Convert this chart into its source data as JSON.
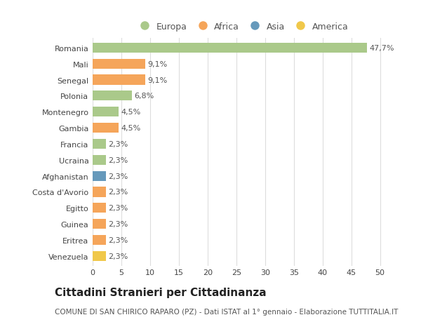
{
  "countries": [
    "Venezuela",
    "Eritrea",
    "Guinea",
    "Egitto",
    "Costa d'Avorio",
    "Afghanistan",
    "Ucraina",
    "Francia",
    "Gambia",
    "Montenegro",
    "Polonia",
    "Senegal",
    "Mali",
    "Romania"
  ],
  "values": [
    2.3,
    2.3,
    2.3,
    2.3,
    2.3,
    2.3,
    2.3,
    2.3,
    4.5,
    4.5,
    6.8,
    9.1,
    9.1,
    47.7
  ],
  "labels": [
    "2,3%",
    "2,3%",
    "2,3%",
    "2,3%",
    "2,3%",
    "2,3%",
    "2,3%",
    "2,3%",
    "4,5%",
    "4,5%",
    "6,8%",
    "9,1%",
    "9,1%",
    "47,7%"
  ],
  "colors": [
    "#f0c84a",
    "#f5a55a",
    "#f5a55a",
    "#f5a55a",
    "#f5a55a",
    "#6699bb",
    "#aac98a",
    "#aac98a",
    "#f5a55a",
    "#aac98a",
    "#aac98a",
    "#f5a55a",
    "#f5a55a",
    "#aac98a"
  ],
  "legend_labels": [
    "Europa",
    "Africa",
    "Asia",
    "America"
  ],
  "legend_colors": [
    "#aac98a",
    "#f5a55a",
    "#6699bb",
    "#f0c84a"
  ],
  "title": "Cittadini Stranieri per Cittadinanza",
  "subtitle": "COMUNE DI SAN CHIRICO RAPARO (PZ) - Dati ISTAT al 1° gennaio - Elaborazione TUTTITALIA.IT",
  "xlim": [
    0,
    52
  ],
  "xticks": [
    0,
    5,
    10,
    15,
    20,
    25,
    30,
    35,
    40,
    45,
    50
  ],
  "bg_color": "#ffffff",
  "grid_color": "#dddddd",
  "bar_height": 0.62,
  "label_fontsize": 8,
  "tick_fontsize": 8,
  "title_fontsize": 11,
  "subtitle_fontsize": 7.5,
  "legend_fontsize": 9
}
